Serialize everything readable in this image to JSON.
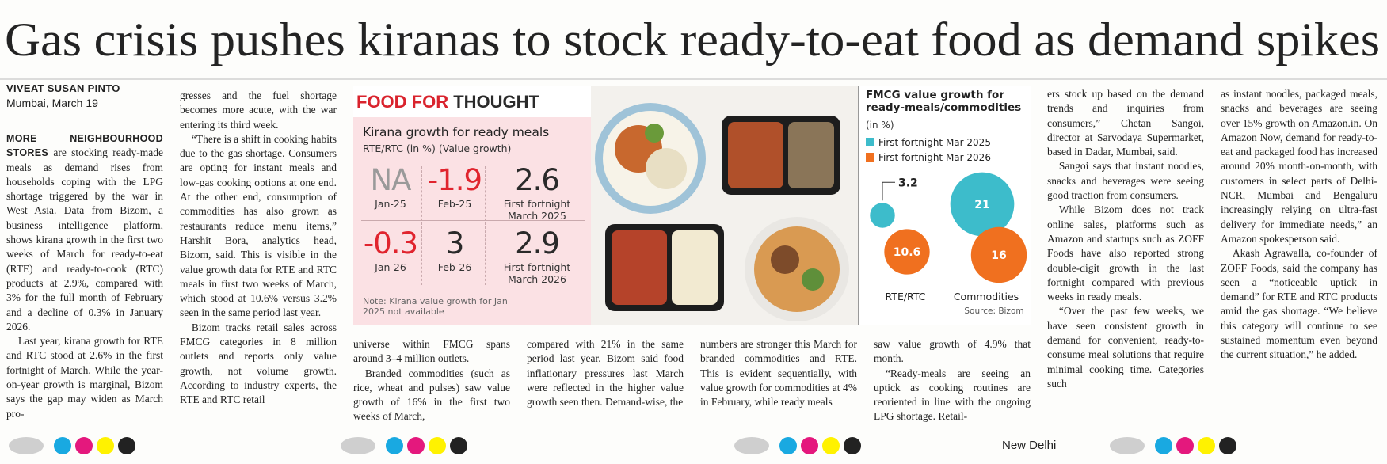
{
  "headline": "Gas crisis pushes kiranas to stock ready-to-eat food as demand spikes",
  "byline": {
    "author": "VIVEAT SUSAN PINTO",
    "dateline": "Mumbai, March 19"
  },
  "article": {
    "lead": "MORE NEIGHBOURHOOD STORES",
    "columns": [
      [
        "are stocking ready-made meals as demand rises from households coping with the LPG shortage triggered by the war in West Asia. Data from Bizom, a business intelligence platform, shows kirana growth in the first two weeks of March for ready-to-eat (RTE) and ready-to-cook (RTC) products at 2.9%, compared with 3% for the full month of February and a decline of 0.3% in January 2026.",
        "Last year, kirana growth for RTE and RTC stood at 2.6% in the first fortnight of March. While the year-on-year growth is marginal, Bizom says the gap may widen as March pro-"
      ],
      [
        "gresses and the fuel shortage becomes more acute, with the war entering its third week.",
        "“There is a shift in cooking habits due to the gas shortage. Consumers are opting for instant meals and low-gas cooking options at one end. At the other end, consumption of commodities has also grown as restaurants reduce menu items,” Harshit Bora, analytics head, Bizom, said. This is visible in the value growth data for RTE and RTC meals in first two weeks of March, which stood at 10.6% versus 3.2% seen in the same period last year.",
        "Bizom tracks retail sales across FMCG categories in 8 million outlets and reports only value growth, not volume growth. According to industry experts, the RTE and RTC retail"
      ],
      [
        "universe within FMCG spans around 3–4 million outlets.",
        "Branded commodities (such as rice, wheat and pulses) saw value growth of 16% in the first two weeks of March,"
      ],
      [
        "compared with 21% in the same period last year. Bizom said food inflationary pressures last March were reflected in the higher value growth seen then. Demand-wise, the"
      ],
      [
        "numbers are stronger this March for branded commodities and RTE. This is evident sequentially, with value growth for commodities at 4% in February, while ready meals"
      ],
      [
        "saw value growth of 4.9% that month.",
        "“Ready-meals are seeing an uptick as cooking routines are reoriented in line with the ongoing LPG shortage. Retail-"
      ],
      [
        "ers stock up based on the demand trends and inquiries from consumers,” Chetan Sangoi, director at Sarvodaya Supermarket, based in Dadar, Mumbai, said.",
        "Sangoi says that instant noodles, snacks and beverages were seeing good traction from consumers.",
        "While Bizom does not track online sales, platforms such as Amazon and startups such as ZOFF Foods have also reported strong double-digit growth in the last fortnight compared with previous weeks in ready meals.",
        "“Over the past few weeks, we have seen consistent growth in demand for convenient, ready-to-consume meal solutions that require minimal cooking time. Categories such"
      ],
      [
        "as instant noodles, packaged meals, snacks and beverages are seeing over 15% growth on Amazon.in. On Amazon Now, demand for ready-to-eat and packaged food has increased around 20% month-on-month, with customers in select parts of Delhi-NCR, Mumbai and Bengaluru increasingly relying on ultra-fast delivery for immediate needs,” an Amazon spokesperson said.",
        "Akash Agrawalla, co-founder of ZOFF Foods, said the company has seen a “noticeable uptick in demand” for RTE and RTC products amid the gas shortage. “We believe this category will continue to see sustained momentum even beyond the current situation,” he added."
      ]
    ]
  },
  "graphic": {
    "title_highlight": "FOOD FOR",
    "title_rest": "THOUGHT",
    "kirana": {
      "title": "Kirana growth for ready meals",
      "subtitle": "RTE/RTC (in %) (Value growth)",
      "cells": [
        {
          "value": "NA",
          "label": "Jan-25"
        },
        {
          "value": -1.9,
          "label": "Feb-25"
        },
        {
          "value": 2.6,
          "label": "First fortnight March 2025"
        },
        {
          "value": -0.3,
          "label": "Jan-26"
        },
        {
          "value": 3,
          "label": "Feb-26"
        },
        {
          "value": 2.9,
          "label": "First fortnight March 2026"
        }
      ],
      "note": "Note: Kirana value growth for Jan 2025 not available"
    },
    "bubble_chart": {
      "title": "FMCG value growth for ready-meals/commodities",
      "unit": "(in %)",
      "legend": [
        {
          "name": "First fortnight Mar 2025",
          "color": "#3dbccb"
        },
        {
          "name": "First fortnight Mar 2026",
          "color": "#f0701f"
        }
      ],
      "groups": [
        {
          "name": "RTE/RTC",
          "values": [
            3.2,
            10.6
          ]
        },
        {
          "name": "Commodities",
          "values": [
            21,
            16
          ]
        }
      ],
      "source": "Source: Bizom"
    }
  },
  "footer": {
    "edition": "New Delhi"
  }
}
